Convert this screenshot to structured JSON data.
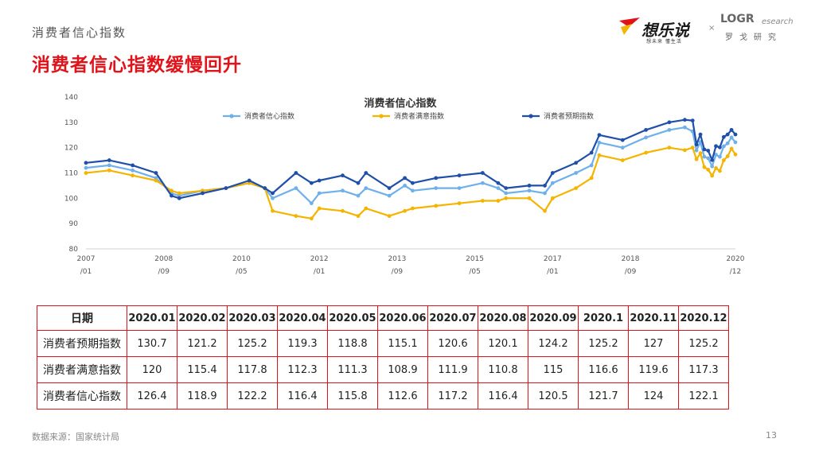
{
  "header": {
    "section": "消费者信心指数",
    "title": "消费者信心指数缓慢回升",
    "logo1_name": "想乐说",
    "logo1_slogan": "想未来 懂生活",
    "times": "×",
    "logo2_word": "LOGR",
    "logo2_research": "esearch",
    "logo2_cn": "罗戈研究"
  },
  "colors": {
    "confidence": "#6fb0ea",
    "satisfaction": "#f4b400",
    "expectation": "#1f4fa8",
    "accent": "#e0121a"
  },
  "chart_data": {
    "type": "line",
    "title": "消费者信心指数",
    "legend_position": "top-center",
    "ylim": [
      80,
      140
    ],
    "yticks": [
      80,
      90,
      100,
      110,
      120,
      130,
      140
    ],
    "xlim": [
      2007.0,
      2020.917
    ],
    "xticks": [
      {
        "pos": 2007.0,
        "label1": "2007",
        "label2": "/01"
      },
      {
        "pos": 2008.667,
        "label1": "2008",
        "label2": "/09"
      },
      {
        "pos": 2010.333,
        "label1": "2010",
        "label2": "/05"
      },
      {
        "pos": 2012.0,
        "label1": "2012",
        "label2": "/01"
      },
      {
        "pos": 2013.667,
        "label1": "2013",
        "label2": "/09"
      },
      {
        "pos": 2015.333,
        "label1": "2015",
        "label2": "/05"
      },
      {
        "pos": 2017.0,
        "label1": "2017",
        "label2": "/01"
      },
      {
        "pos": 2018.667,
        "label1": "2018",
        "label2": "/09"
      },
      {
        "pos": 2020.917,
        "label1": "2020",
        "label2": "/12"
      }
    ],
    "series": [
      {
        "name": "消费者信心指数",
        "x": [
          2007.0,
          2007.5,
          2008.0,
          2008.5,
          2008.833,
          2009.0,
          2009.5,
          2010.0,
          2010.5,
          2010.833,
          2011.0,
          2011.5,
          2011.833,
          2012.0,
          2012.5,
          2012.833,
          2013.0,
          2013.5,
          2013.833,
          2014.0,
          2014.5,
          2015.0,
          2015.5,
          2015.833,
          2016.0,
          2016.5,
          2016.833,
          2017.0,
          2017.5,
          2017.833,
          2018.0,
          2018.5,
          2019.0,
          2019.5,
          2019.833,
          2020.0,
          2020.083,
          2020.167,
          2020.25,
          2020.333,
          2020.417,
          2020.5,
          2020.583,
          2020.667,
          2020.75,
          2020.833,
          2020.917
        ],
        "y": [
          112,
          113,
          111,
          108,
          102,
          101,
          103,
          104,
          106,
          104,
          100,
          104,
          98,
          102,
          103,
          101,
          104,
          101,
          105,
          103,
          104,
          104,
          106,
          104,
          102,
          103,
          102,
          106,
          110,
          113,
          122,
          120,
          124,
          127,
          128,
          126.4,
          118.9,
          122.2,
          116.4,
          115.8,
          112.6,
          117.2,
          116.4,
          120.5,
          121.7,
          124,
          122.1
        ]
      },
      {
        "name": "消费者满意指数",
        "x": [
          2007.0,
          2007.5,
          2008.0,
          2008.5,
          2008.833,
          2009.0,
          2009.5,
          2010.0,
          2010.5,
          2010.833,
          2011.0,
          2011.5,
          2011.833,
          2012.0,
          2012.5,
          2012.833,
          2013.0,
          2013.5,
          2013.833,
          2014.0,
          2014.5,
          2015.0,
          2015.5,
          2015.833,
          2016.0,
          2016.5,
          2016.833,
          2017.0,
          2017.5,
          2017.833,
          2018.0,
          2018.5,
          2019.0,
          2019.5,
          2019.833,
          2020.0,
          2020.083,
          2020.167,
          2020.25,
          2020.333,
          2020.417,
          2020.5,
          2020.583,
          2020.667,
          2020.75,
          2020.833,
          2020.917
        ],
        "y": [
          110,
          111,
          109,
          107,
          103,
          102,
          103,
          104,
          106,
          104,
          95,
          93,
          92,
          96,
          95,
          93,
          96,
          93,
          95,
          96,
          97,
          98,
          99,
          99,
          100,
          100,
          95,
          100,
          104,
          108,
          117,
          115,
          118,
          120,
          119,
          120,
          115.4,
          117.8,
          112.3,
          111.3,
          108.9,
          111.9,
          110.8,
          115,
          116.6,
          119.6,
          117.3
        ]
      },
      {
        "name": "消费者预期指数",
        "x": [
          2007.0,
          2007.5,
          2008.0,
          2008.5,
          2008.833,
          2009.0,
          2009.5,
          2010.0,
          2010.5,
          2010.833,
          2011.0,
          2011.5,
          2011.833,
          2012.0,
          2012.5,
          2012.833,
          2013.0,
          2013.5,
          2013.833,
          2014.0,
          2014.5,
          2015.0,
          2015.5,
          2015.833,
          2016.0,
          2016.5,
          2016.833,
          2017.0,
          2017.5,
          2017.833,
          2018.0,
          2018.5,
          2019.0,
          2019.5,
          2019.833,
          2020.0,
          2020.083,
          2020.167,
          2020.25,
          2020.333,
          2020.417,
          2020.5,
          2020.583,
          2020.667,
          2020.75,
          2020.833,
          2020.917
        ],
        "y": [
          114,
          115,
          113,
          110,
          101,
          100,
          102,
          104,
          107,
          104,
          102,
          110,
          106,
          107,
          109,
          106,
          110,
          104,
          108,
          106,
          108,
          109,
          110,
          106,
          104,
          105,
          105,
          110,
          114,
          118,
          125,
          123,
          127,
          130,
          131,
          130.7,
          121.2,
          125.2,
          119.3,
          118.8,
          115.1,
          120.6,
          120.1,
          124.2,
          125.2,
          127,
          125.2
        ]
      }
    ]
  },
  "table": {
    "dates": [
      "2020.01",
      "2020.02",
      "2020.03",
      "2020.04",
      "2020.05",
      "2020.06",
      "2020.07",
      "2020.08",
      "2020.09",
      "2020.1",
      "2020.11",
      "2020.12"
    ],
    "rows": [
      {
        "label": "消费者预期指数",
        "values": [
          "130.7",
          "121.2",
          "125.2",
          "119.3",
          "118.8",
          "115.1",
          "120.6",
          "120.1",
          "124.2",
          "125.2",
          "127",
          "125.2"
        ]
      },
      {
        "label": "消费者满意指数",
        "values": [
          "120",
          "115.4",
          "117.8",
          "112.3",
          "111.3",
          "108.9",
          "111.9",
          "110.8",
          "115",
          "116.6",
          "119.6",
          "117.3"
        ]
      },
      {
        "label": "消费者信心指数",
        "values": [
          "126.4",
          "118.9",
          "122.2",
          "116.4",
          "115.8",
          "112.6",
          "117.2",
          "116.4",
          "120.5",
          "121.7",
          "124",
          "122.1"
        ]
      }
    ],
    "header_label": "日期"
  },
  "footer": {
    "source": "数据来源：国家统计局",
    "page": "13"
  }
}
